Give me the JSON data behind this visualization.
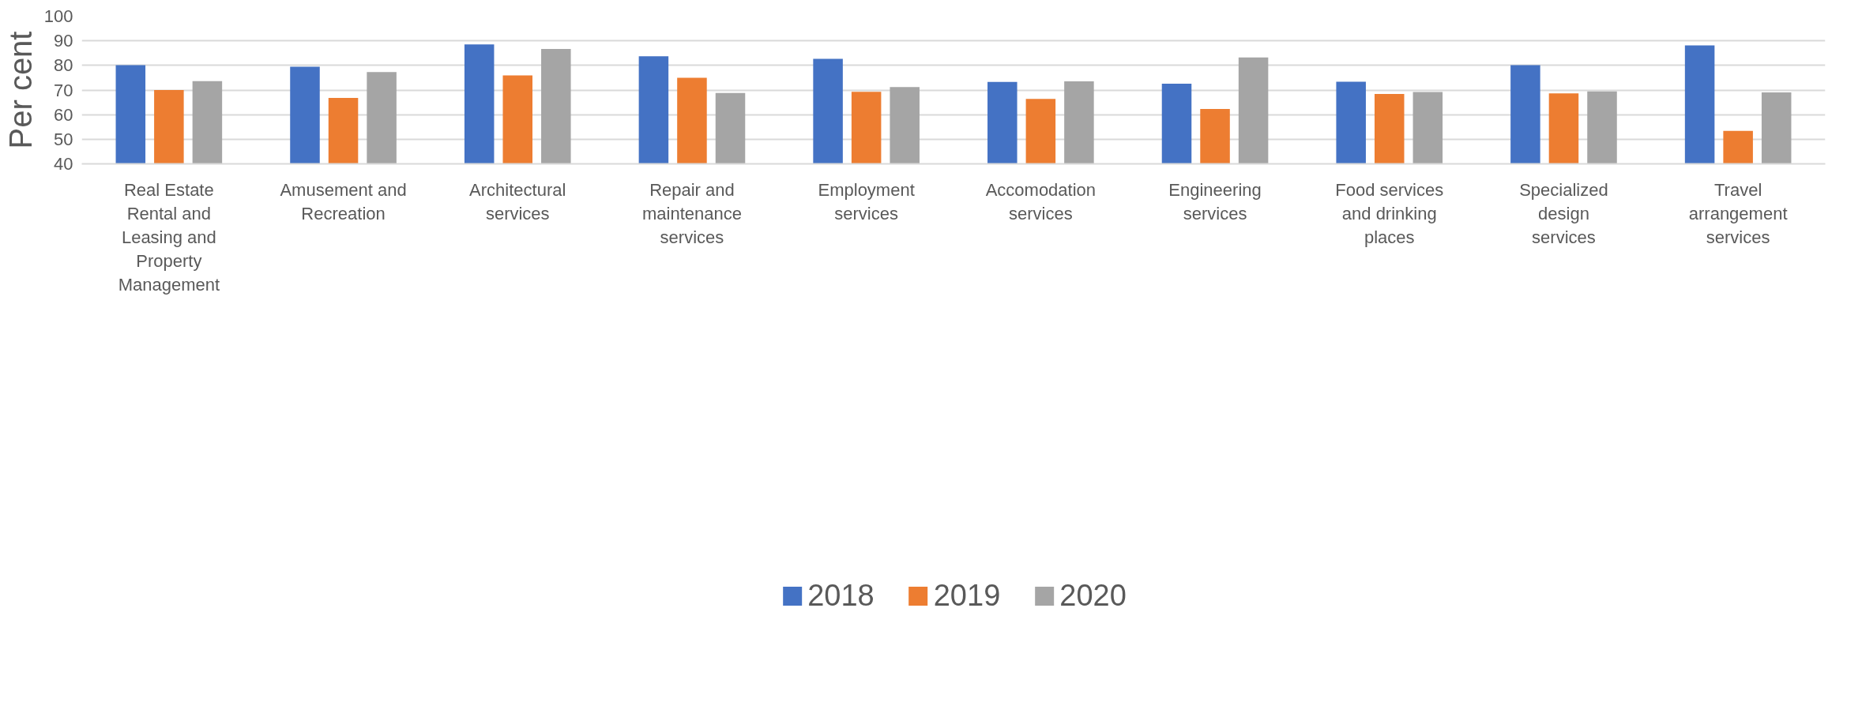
{
  "chart_data": {
    "type": "bar",
    "ylabel": "Per cent",
    "categories": [
      "Real Estate Rental and Leasing and Property Management",
      "Amusement and Recreation",
      "Architectural services",
      "Repair and maintenance services",
      "Employment services",
      "Accomodation services",
      "Engineering services",
      "Food services and drinking places",
      "Specialized design services",
      "Travel arrangement services"
    ],
    "series": [
      {
        "name": "2018",
        "color": "#4472c4",
        "values": [
          80.1,
          79.5,
          88.5,
          83.7,
          82.7,
          73.3,
          72.6,
          73.4,
          80.1,
          88.1
        ]
      },
      {
        "name": "2019",
        "color": "#ed7d31",
        "values": [
          70.0,
          66.8,
          75.9,
          75.0,
          69.3,
          66.4,
          62.3,
          68.4,
          68.6,
          53.4
        ]
      },
      {
        "name": "2020",
        "color": "#a5a5a5",
        "values": [
          73.6,
          77.3,
          86.7,
          68.8,
          71.2,
          73.5,
          83.2,
          69.2,
          69.4,
          69.0
        ]
      }
    ],
    "ylim": [
      40,
      100
    ],
    "yticks": [
      40,
      50,
      60,
      70,
      80,
      90,
      100
    ],
    "grid": "y",
    "legend": "bottom"
  }
}
